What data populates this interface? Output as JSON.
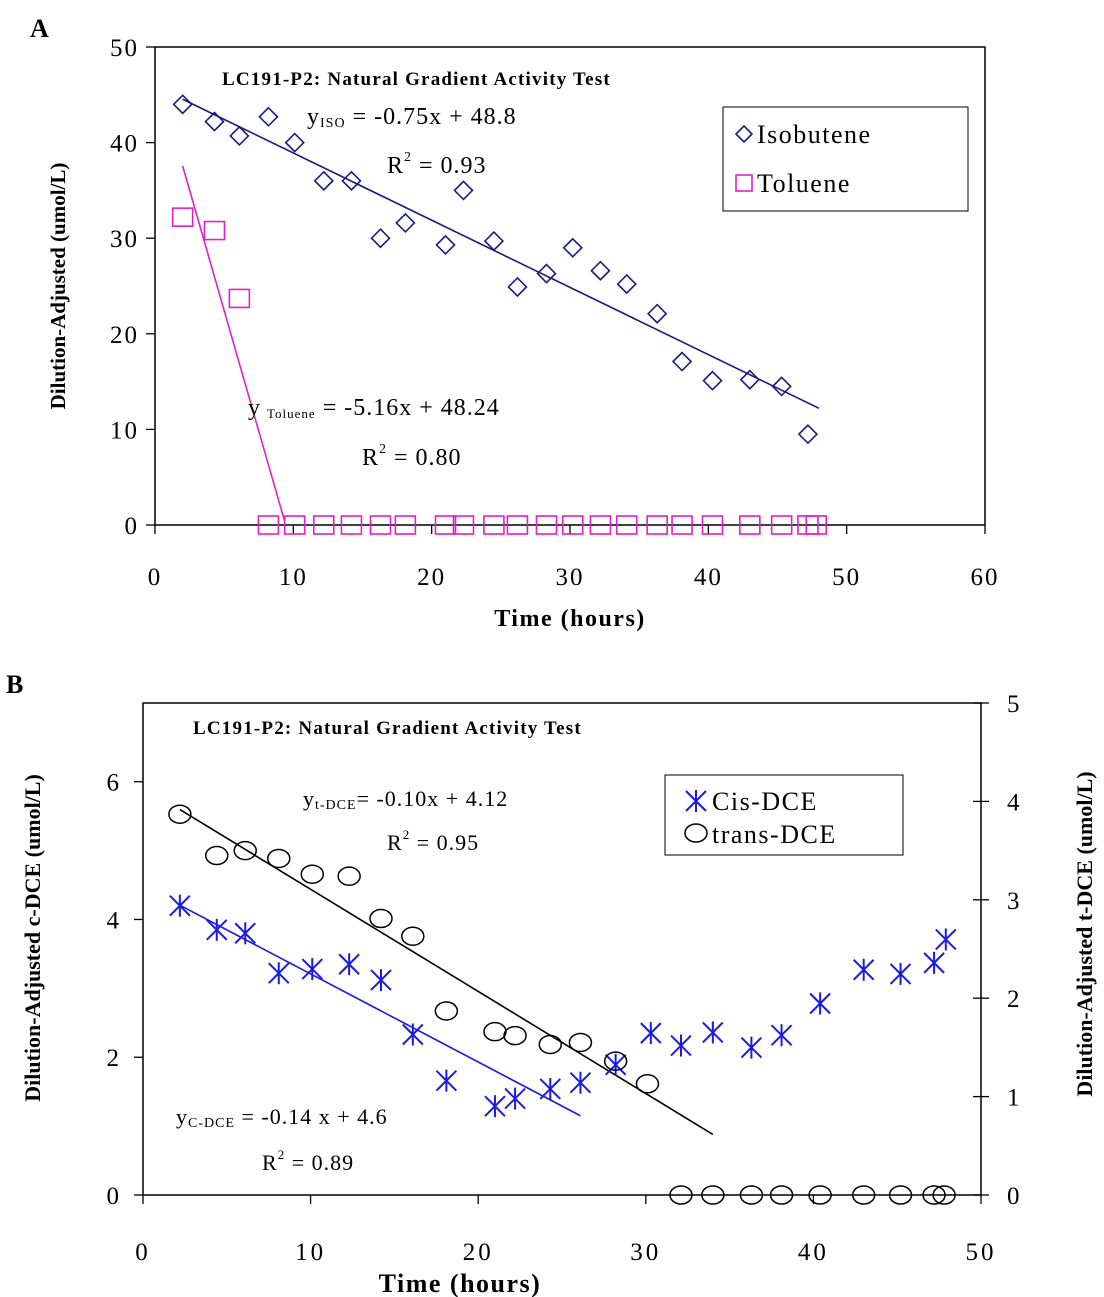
{
  "chart_data": [
    {
      "panel_label": "A",
      "type": "scatter",
      "title": "LC191-P2: Natural Gradient Activity Test",
      "xlabel": "Time (hours)",
      "ylabel": "Dilution-Adjusted (umol/L)",
      "xlim": [
        0,
        60
      ],
      "ylim": [
        0,
        50
      ],
      "x_ticks": [
        0,
        10,
        20,
        30,
        40,
        50,
        60
      ],
      "y_ticks": [
        0,
        10,
        20,
        30,
        40,
        50
      ],
      "grid": false,
      "legend_position": "top-right",
      "series": [
        {
          "name": "Isobutene",
          "marker": "diamond",
          "color": "#1a1a80",
          "points": [
            [
              2.0,
              44.0
            ],
            [
              4.3,
              42.2
            ],
            [
              6.1,
              40.7
            ],
            [
              8.2,
              42.7
            ],
            [
              10.1,
              40.0
            ],
            [
              12.2,
              36.0
            ],
            [
              14.2,
              36.0
            ],
            [
              16.3,
              30.0
            ],
            [
              18.1,
              31.6
            ],
            [
              21.0,
              29.3
            ],
            [
              22.3,
              35.0
            ],
            [
              24.5,
              29.7
            ],
            [
              26.2,
              24.9
            ],
            [
              28.3,
              26.3
            ],
            [
              30.2,
              29.0
            ],
            [
              32.2,
              26.6
            ],
            [
              34.1,
              25.2
            ],
            [
              36.3,
              22.1
            ],
            [
              38.1,
              17.1
            ],
            [
              40.3,
              15.1
            ],
            [
              43.0,
              15.2
            ],
            [
              45.3,
              14.5
            ],
            [
              47.2,
              9.5
            ]
          ]
        },
        {
          "name": "Toluene",
          "marker": "square",
          "color": "#e020c8",
          "points": [
            [
              2.0,
              32.2
            ],
            [
              4.3,
              30.8
            ],
            [
              6.1,
              23.7
            ],
            [
              8.2,
              0
            ],
            [
              10.1,
              0
            ],
            [
              12.2,
              0
            ],
            [
              14.2,
              0
            ],
            [
              16.3,
              0
            ],
            [
              18.1,
              0
            ],
            [
              21.0,
              0
            ],
            [
              22.3,
              0
            ],
            [
              24.5,
              0
            ],
            [
              26.2,
              0
            ],
            [
              28.3,
              0
            ],
            [
              30.2,
              0
            ],
            [
              32.2,
              0
            ],
            [
              34.1,
              0
            ],
            [
              36.3,
              0
            ],
            [
              38.1,
              0
            ],
            [
              40.3,
              0
            ],
            [
              43.0,
              0
            ],
            [
              45.3,
              0
            ],
            [
              47.2,
              0
            ],
            [
              47.8,
              0
            ]
          ]
        }
      ],
      "fits": [
        {
          "series": "Isobutene",
          "color": "#1a1a80",
          "x_range": [
            2.0,
            48.0
          ]
        },
        {
          "series": "Toluene",
          "color": "#e020c8",
          "x_range": [
            2.0,
            9.35
          ]
        }
      ],
      "annotations": {
        "iso_eq_y": "y",
        "iso_eq_sub": "ISO",
        "iso_eq_rest": " = -0.75x + 48.8",
        "iso_r2_a": "R",
        "iso_r2_sup": "2",
        "iso_r2_b": " = 0.93",
        "tol_eq_y": "y",
        "tol_eq_sub": "Toluene",
        "tol_eq_rest": " = -5.16x + 48.24",
        "tol_r2_a": "R",
        "tol_r2_sup": "2",
        "tol_r2_b": " = 0.80"
      }
    },
    {
      "panel_label": "B",
      "type": "scatter",
      "title": "LC191-P2: Natural Gradient Activity Test",
      "xlabel": "Time (hours)",
      "ylabel_left": "Dilution-Adjusted c-DCE (umol/L)",
      "ylabel_right": "Dilution-Adjusted t-DCE (umol/L)",
      "xlim": [
        0,
        50
      ],
      "ylim_left": [
        0,
        7.143
      ],
      "ylim_right": [
        0,
        5
      ],
      "x_ticks": [
        0,
        10,
        20,
        30,
        40,
        50
      ],
      "y_ticks_left": [
        0,
        2,
        4,
        6
      ],
      "y_ticks_right": [
        0,
        1,
        2,
        3,
        4,
        5
      ],
      "grid": false,
      "legend_position": "top-right",
      "series": [
        {
          "name": "Cis-DCE",
          "marker": "asterisk",
          "color": "#1a1ae6",
          "axis": "left",
          "points": [
            [
              2.2,
              4.2
            ],
            [
              4.4,
              3.85
            ],
            [
              6.1,
              3.8
            ],
            [
              8.1,
              3.22
            ],
            [
              10.1,
              3.28
            ],
            [
              12.3,
              3.35
            ],
            [
              14.2,
              3.12
            ],
            [
              16.1,
              2.33
            ],
            [
              18.1,
              1.66
            ],
            [
              21.0,
              1.29
            ],
            [
              22.2,
              1.4
            ],
            [
              24.3,
              1.54
            ],
            [
              26.1,
              1.63
            ],
            [
              28.2,
              1.89
            ],
            [
              30.3,
              2.35
            ],
            [
              32.1,
              2.17
            ],
            [
              34.0,
              2.36
            ],
            [
              36.3,
              2.14
            ],
            [
              38.1,
              2.32
            ],
            [
              40.4,
              2.78
            ],
            [
              43.0,
              3.27
            ],
            [
              45.2,
              3.21
            ],
            [
              47.2,
              3.37
            ],
            [
              47.9,
              3.71
            ]
          ]
        },
        {
          "name": "trans-DCE",
          "marker": "circle",
          "color": "#000000",
          "axis": "right",
          "points": [
            [
              2.2,
              3.87
            ],
            [
              4.4,
              3.45
            ],
            [
              6.1,
              3.5
            ],
            [
              8.1,
              3.42
            ],
            [
              10.1,
              3.26
            ],
            [
              12.3,
              3.24
            ],
            [
              14.2,
              2.81
            ],
            [
              16.1,
              2.63
            ],
            [
              18.1,
              1.87
            ],
            [
              21.0,
              1.66
            ],
            [
              22.2,
              1.62
            ],
            [
              24.3,
              1.53
            ],
            [
              26.1,
              1.55
            ],
            [
              28.2,
              1.36
            ],
            [
              30.1,
              1.13
            ],
            [
              32.1,
              0
            ],
            [
              34.0,
              0
            ],
            [
              36.3,
              0
            ],
            [
              38.1,
              0
            ],
            [
              40.4,
              0
            ],
            [
              43.0,
              0
            ],
            [
              45.2,
              0
            ],
            [
              47.2,
              0
            ],
            [
              47.8,
              0
            ]
          ]
        }
      ],
      "fits": [
        {
          "series": "Cis-DCE",
          "color": "#1a1ae6",
          "axis": "left",
          "x_range": [
            2.2,
            26.1
          ]
        },
        {
          "series": "trans-DCE",
          "color": "#000000",
          "axis": "right",
          "x_range": [
            2.2,
            34.0
          ]
        }
      ],
      "annotations": {
        "t_eq_y": "y",
        "t_eq_sub": "t-DCE",
        "t_eq_rest": "= -0.10x + 4.12",
        "t_r2_a": "R",
        "t_r2_sup": "2",
        "t_r2_b": " = 0.95",
        "c_eq_y": "y",
        "c_eq_sub": "C-DCE",
        "c_eq_rest": " = -0.14 x + 4.6",
        "c_r2_a": "R",
        "c_r2_sup": "2",
        "c_r2_b": " = 0.89"
      }
    }
  ]
}
